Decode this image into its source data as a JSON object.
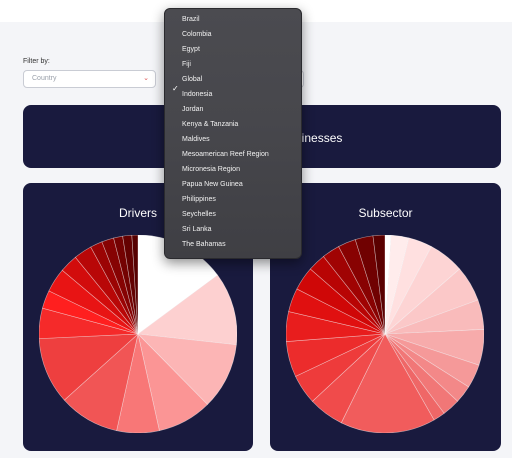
{
  "filters": {
    "label": "Filter by:",
    "country_placeholder": "Country"
  },
  "banner": {
    "text": "usinesses"
  },
  "dropdown": {
    "selected": "Global",
    "options": [
      "Brazil",
      "Colombia",
      "Egypt",
      "Fiji",
      "Global",
      "Indonesia",
      "Jordan",
      "Kenya & Tanzania",
      "Maldives",
      "Mesoamerican Reef Region",
      "Micronesia Region",
      "Papua New Guinea",
      "Philippines",
      "Seychelles",
      "Sri Lanka",
      "The Bahamas"
    ]
  },
  "chart_data": [
    {
      "type": "pie",
      "title": "Drivers",
      "values": [
        15,
        12,
        11,
        9,
        7,
        10,
        11,
        5,
        3,
        4,
        3,
        3,
        2,
        2,
        1.5,
        1.5,
        1
      ],
      "colors": [
        "#ffffff",
        "#fdd0d0",
        "#fcb5b5",
        "#fb9595",
        "#f87777",
        "#f15555",
        "#ee3f3f",
        "#f52a2a",
        "#ff1f1f",
        "#e81414",
        "#d20c0c",
        "#b80707",
        "#9b0404",
        "#860303",
        "#740202",
        "#640101",
        "#560000"
      ]
    },
    {
      "type": "pie",
      "title": "Subsector",
      "values": [
        1,
        3,
        4,
        6,
        6,
        5,
        6,
        4,
        3,
        3,
        2,
        16,
        6,
        5,
        6,
        5,
        4,
        4,
        3,
        3,
        3,
        3,
        2
      ],
      "colors": [
        "#ffffff",
        "#ffecec",
        "#ffe0e0",
        "#fdd4d4",
        "#fbc8c8",
        "#f9bbbb",
        "#f7abab",
        "#f59999",
        "#f38888",
        "#f17777",
        "#ef6767",
        "#f15c5c",
        "#f04b4b",
        "#ee3b3b",
        "#ec2c2c",
        "#e81d1d",
        "#e01010",
        "#cf0707",
        "#b80404",
        "#a00303",
        "#880202",
        "#700101",
        "#5a0000"
      ]
    }
  ]
}
